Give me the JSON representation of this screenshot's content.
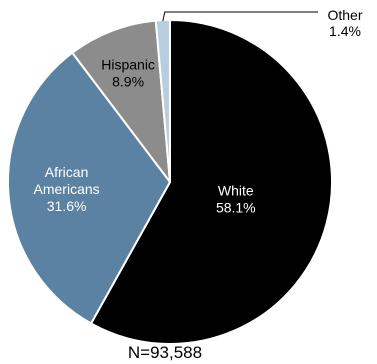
{
  "chart_data": {
    "type": "pie",
    "title": "",
    "slices": [
      {
        "name": "White",
        "value_label": "58.1%",
        "value": 58.1,
        "color": "#000000",
        "label_color": "#ffffff"
      },
      {
        "name": "African Americans",
        "name_lines": [
          "African",
          "Americans"
        ],
        "value_label": "31.6%",
        "value": 31.6,
        "color": "#5b82a2",
        "label_color": "#ffffff"
      },
      {
        "name": "Hispanic",
        "value_label": "8.9%",
        "value": 8.9,
        "color": "#8c8c8c",
        "label_color": "#000000"
      },
      {
        "name": "Other",
        "value_label": "1.4%",
        "value": 1.4,
        "color": "#b9cde0",
        "label_color": "#000000"
      }
    ],
    "start_angle_deg": 0,
    "direction": "clockwise",
    "slice_border_color": "#ffffff",
    "sample_size_label": "N=93,588"
  }
}
